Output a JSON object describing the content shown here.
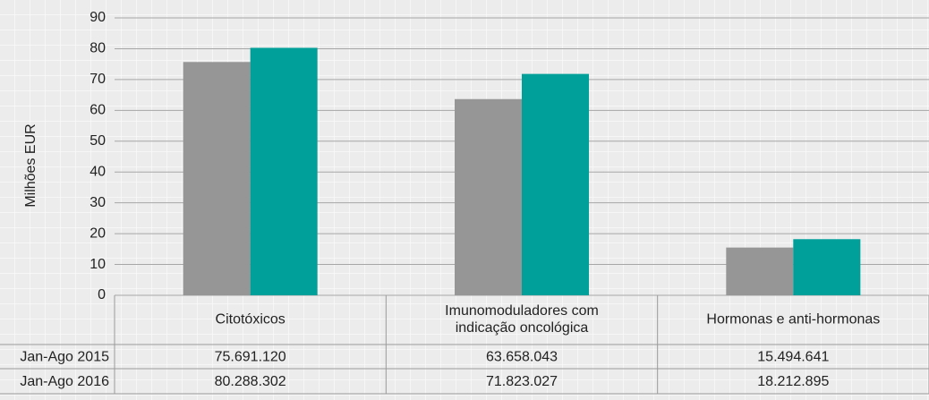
{
  "chart_data": {
    "type": "bar",
    "y_label": "Milhões EUR",
    "categories": [
      "Citotóxicos",
      "Imunomoduladores com\nindicação oncológica",
      "Hormonas e anti-hormonas"
    ],
    "series": [
      {
        "name": "Jan-Ago 2015",
        "color": "#969696",
        "values": [
          75.69112,
          63.658043,
          15.494641
        ],
        "value_labels": [
          "75.691.120",
          "63.658.043",
          "15.494.641"
        ]
      },
      {
        "name": "Jan-Ago 2016",
        "color": "#00a09a",
        "values": [
          80.288302,
          71.823027,
          18.212895
        ],
        "value_labels": [
          "80.288.302",
          "71.823.027",
          "18.212.895"
        ]
      }
    ],
    "ylim": [
      0,
      90
    ],
    "yticks": [
      0,
      10,
      20,
      30,
      40,
      50,
      60,
      70,
      80,
      90
    ],
    "grid": true
  }
}
